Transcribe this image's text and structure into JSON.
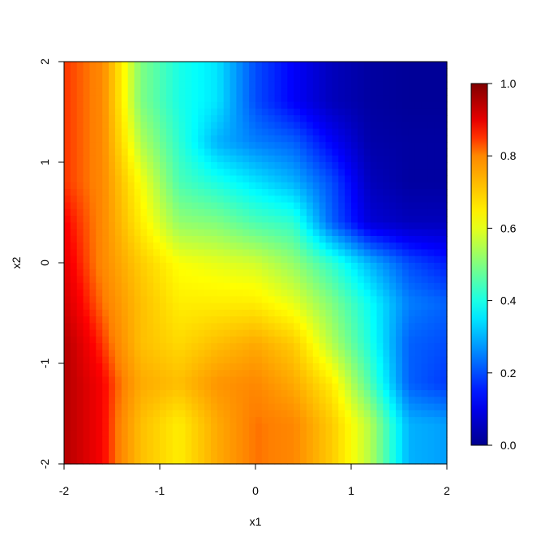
{
  "chart_data": {
    "type": "heatmap",
    "title": "",
    "xlabel": "x1",
    "ylabel": "x2",
    "xlim": [
      -2,
      2
    ],
    "ylim": [
      -2,
      2
    ],
    "x_ticks": [
      "-2",
      "-1",
      "0",
      "1",
      "2"
    ],
    "y_ticks": [
      "-2",
      "-1",
      "0",
      "1",
      "2"
    ],
    "colorbar": {
      "range": [
        0.0,
        1.0
      ],
      "ticks": [
        "0.0",
        "0.2",
        "0.4",
        "0.6",
        "0.8",
        "1.0"
      ],
      "colormap": [
        "#00008F",
        "#0000FF",
        "#00FFFF",
        "#FFFF00",
        "#FF7F00",
        "#FF0000",
        "#800000"
      ],
      "placement": "right"
    },
    "grid_x": [
      -2.0,
      -1.6,
      -1.2,
      -0.8,
      -0.4,
      0.0,
      0.4,
      0.8,
      1.2,
      1.6,
      2.0
    ],
    "grid_y": [
      -2.0,
      -1.6,
      -1.2,
      -0.8,
      -0.4,
      0.0,
      0.4,
      0.8,
      1.2,
      1.6,
      2.0
    ],
    "values": [
      [
        0.95,
        0.88,
        0.72,
        0.65,
        0.75,
        0.82,
        0.8,
        0.7,
        0.55,
        0.3,
        0.28
      ],
      [
        0.95,
        0.88,
        0.72,
        0.65,
        0.75,
        0.82,
        0.8,
        0.7,
        0.55,
        0.3,
        0.28
      ],
      [
        0.95,
        0.88,
        0.75,
        0.72,
        0.78,
        0.8,
        0.75,
        0.65,
        0.45,
        0.22,
        0.18
      ],
      [
        0.95,
        0.85,
        0.72,
        0.68,
        0.72,
        0.75,
        0.7,
        0.55,
        0.4,
        0.22,
        0.2
      ],
      [
        0.92,
        0.82,
        0.72,
        0.65,
        0.65,
        0.65,
        0.6,
        0.5,
        0.38,
        0.25,
        0.22
      ],
      [
        0.9,
        0.8,
        0.7,
        0.62,
        0.6,
        0.58,
        0.52,
        0.42,
        0.3,
        0.2,
        0.15
      ],
      [
        0.88,
        0.8,
        0.65,
        0.52,
        0.5,
        0.45,
        0.42,
        0.22,
        0.08,
        0.05,
        0.05
      ],
      [
        0.85,
        0.8,
        0.62,
        0.45,
        0.4,
        0.35,
        0.3,
        0.2,
        0.05,
        0.02,
        0.02
      ],
      [
        0.85,
        0.8,
        0.55,
        0.42,
        0.3,
        0.25,
        0.22,
        0.12,
        0.03,
        0.02,
        0.02
      ],
      [
        0.85,
        0.8,
        0.5,
        0.4,
        0.35,
        0.2,
        0.12,
        0.05,
        0.02,
        0.01,
        0.01
      ],
      [
        0.85,
        0.8,
        0.5,
        0.4,
        0.35,
        0.2,
        0.12,
        0.05,
        0.02,
        0.01,
        0.01
      ]
    ]
  }
}
